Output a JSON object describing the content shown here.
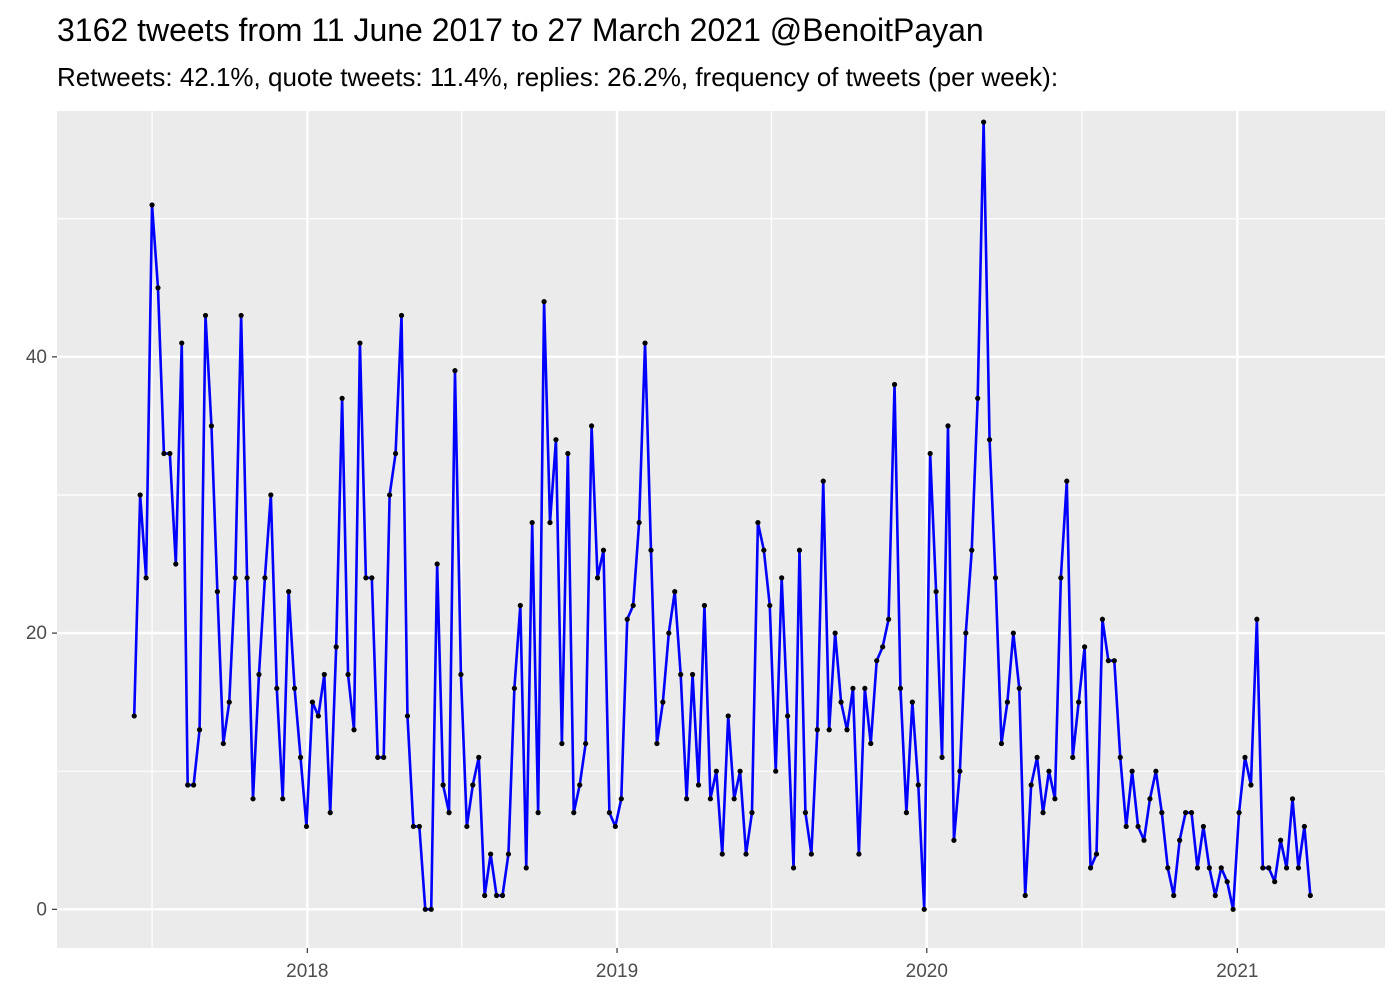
{
  "chart_data": {
    "type": "line",
    "title": "3162 tweets from 11 June 2017 to 27 March 2021 @BenoitPayan",
    "subtitle": "Retweets: 42.1%, quote tweets: 11.4%, replies: 26.2%, frequency of tweets (per week):",
    "xlabel": "",
    "ylabel": "",
    "x_start_date": "2017-06-11",
    "x_step_days": 7,
    "x_range": [
      "2017-03-12",
      "2021-06-24"
    ],
    "ylim": [
      -2.8,
      57.8
    ],
    "x_ticks": [
      {
        "date": "2018-01-01",
        "label": "2018"
      },
      {
        "date": "2019-01-01",
        "label": "2019"
      },
      {
        "date": "2020-01-01",
        "label": "2020"
      },
      {
        "date": "2021-01-01",
        "label": "2021"
      }
    ],
    "y_ticks": [
      0,
      20,
      40
    ],
    "grid": true,
    "line_color": "#0000ff",
    "point_color": "#000000",
    "panel_background": "#ebebeb",
    "series": [
      {
        "values": [
          14,
          30,
          24,
          51,
          45,
          33,
          33,
          25,
          41,
          9,
          9,
          13,
          43,
          35,
          23,
          12,
          15,
          24,
          43,
          24,
          8,
          17,
          24,
          30,
          16,
          8,
          23,
          16,
          11,
          6,
          15,
          14,
          17,
          7,
          19,
          37,
          17,
          13,
          41,
          24,
          24,
          11,
          11,
          30,
          33,
          43,
          14,
          6,
          6,
          0,
          0,
          25,
          9,
          7,
          39,
          17,
          6,
          9,
          11,
          1,
          4,
          1,
          1,
          4,
          16,
          22,
          3,
          28,
          7,
          44,
          28,
          34,
          12,
          33,
          7,
          9,
          12,
          35,
          24,
          26,
          7,
          6,
          8,
          21,
          22,
          28,
          41,
          26,
          12,
          15,
          20,
          23,
          17,
          8,
          17,
          9,
          22,
          8,
          10,
          4,
          14,
          8,
          10,
          4,
          7,
          28,
          26,
          22,
          10,
          24,
          14,
          3,
          26,
          7,
          4,
          13,
          31,
          13,
          20,
          15,
          13,
          16,
          4,
          16,
          12,
          18,
          19,
          21,
          38,
          16,
          7,
          15,
          9,
          0,
          33,
          23,
          11,
          35,
          5,
          10,
          20,
          26,
          37,
          57,
          34,
          24,
          12,
          15,
          20,
          16,
          1,
          9,
          11,
          7,
          10,
          8,
          24,
          31,
          11,
          15,
          19,
          3,
          4,
          21,
          18,
          18,
          11,
          6,
          10,
          6,
          5,
          8,
          10,
          7,
          3,
          1,
          5,
          7,
          7,
          3,
          6,
          3,
          1,
          3,
          2,
          0,
          7,
          11,
          9,
          21,
          3,
          3,
          2,
          5,
          3,
          8,
          3,
          6,
          1
        ]
      }
    ]
  }
}
